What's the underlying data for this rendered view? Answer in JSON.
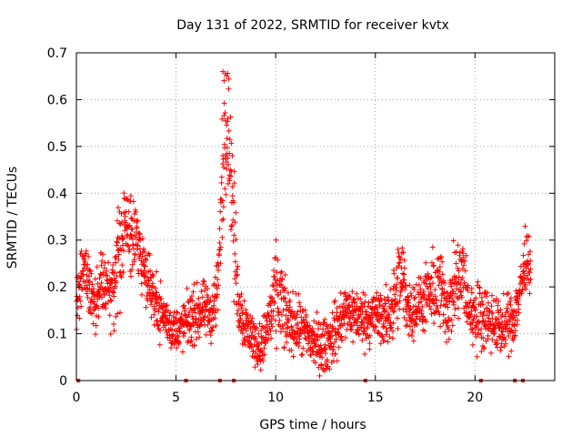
{
  "chart_data": {
    "type": "scatter",
    "title": "Day 131 of 2022, SRMTID for receiver kvtx",
    "xlabel": "GPS time / hours",
    "ylabel": "SRMTID / TECUs",
    "xlim": [
      0,
      24
    ],
    "ylim": [
      0,
      0.7
    ],
    "xticks": [
      0,
      5,
      10,
      15,
      20
    ],
    "yticks": [
      0,
      0.1,
      0.2,
      0.3,
      0.4,
      0.5,
      0.6,
      0.7
    ],
    "grid": true,
    "marker": "plus",
    "color": "#ff0000",
    "series": [
      {
        "name": "SRMTID",
        "profile_hours": [
          0.0,
          0.2,
          0.4,
          0.6,
          0.8,
          1.0,
          1.2,
          1.5,
          1.8,
          2.0,
          2.2,
          2.5,
          2.7,
          3.0,
          3.3,
          3.6,
          3.9,
          4.2,
          4.5,
          4.8,
          5.2,
          5.6,
          6.0,
          6.4,
          6.8,
          7.1,
          7.3,
          7.5,
          7.7,
          7.9,
          8.1,
          8.3,
          8.6,
          9.0,
          9.3,
          9.6,
          9.9,
          10.1,
          10.5,
          11.0,
          11.5,
          12.0,
          12.4,
          12.8,
          13.2,
          13.6,
          14.0,
          14.5,
          15.0,
          15.5,
          16.0,
          16.3,
          16.7,
          17.2,
          17.7,
          18.2,
          18.7,
          19.0,
          19.4,
          19.7,
          20.0,
          20.5,
          21.0,
          21.5,
          22.0,
          22.3,
          22.6,
          22.8
        ],
        "profile_center": [
          0.16,
          0.2,
          0.24,
          0.2,
          0.18,
          0.17,
          0.2,
          0.2,
          0.18,
          0.24,
          0.27,
          0.33,
          0.32,
          0.3,
          0.26,
          0.22,
          0.18,
          0.15,
          0.13,
          0.11,
          0.11,
          0.13,
          0.14,
          0.15,
          0.14,
          0.2,
          0.4,
          0.55,
          0.5,
          0.32,
          0.18,
          0.14,
          0.11,
          0.08,
          0.07,
          0.12,
          0.16,
          0.19,
          0.13,
          0.12,
          0.1,
          0.08,
          0.07,
          0.09,
          0.12,
          0.15,
          0.14,
          0.13,
          0.14,
          0.13,
          0.17,
          0.22,
          0.15,
          0.16,
          0.18,
          0.2,
          0.15,
          0.2,
          0.22,
          0.15,
          0.14,
          0.14,
          0.12,
          0.11,
          0.14,
          0.2,
          0.27,
          0.24
        ],
        "profile_spread": [
          0.04,
          0.06,
          0.06,
          0.05,
          0.05,
          0.05,
          0.06,
          0.06,
          0.07,
          0.08,
          0.08,
          0.09,
          0.07,
          0.07,
          0.06,
          0.05,
          0.05,
          0.05,
          0.04,
          0.04,
          0.04,
          0.05,
          0.05,
          0.05,
          0.05,
          0.07,
          0.12,
          0.1,
          0.1,
          0.12,
          0.07,
          0.05,
          0.05,
          0.04,
          0.04,
          0.06,
          0.07,
          0.1,
          0.06,
          0.05,
          0.05,
          0.05,
          0.05,
          0.05,
          0.06,
          0.05,
          0.05,
          0.05,
          0.05,
          0.05,
          0.07,
          0.09,
          0.05,
          0.05,
          0.06,
          0.08,
          0.06,
          0.08,
          0.08,
          0.05,
          0.06,
          0.06,
          0.05,
          0.05,
          0.05,
          0.06,
          0.05,
          0.05
        ],
        "observed_min": 0.01,
        "observed_max": 0.66,
        "peak_value": 0.66,
        "peak_hour": 7.5,
        "gap_markers_hours": [
          0.1,
          5.5,
          7.2,
          7.9,
          14.5,
          20.3,
          22.0,
          22.4
        ]
      }
    ]
  }
}
